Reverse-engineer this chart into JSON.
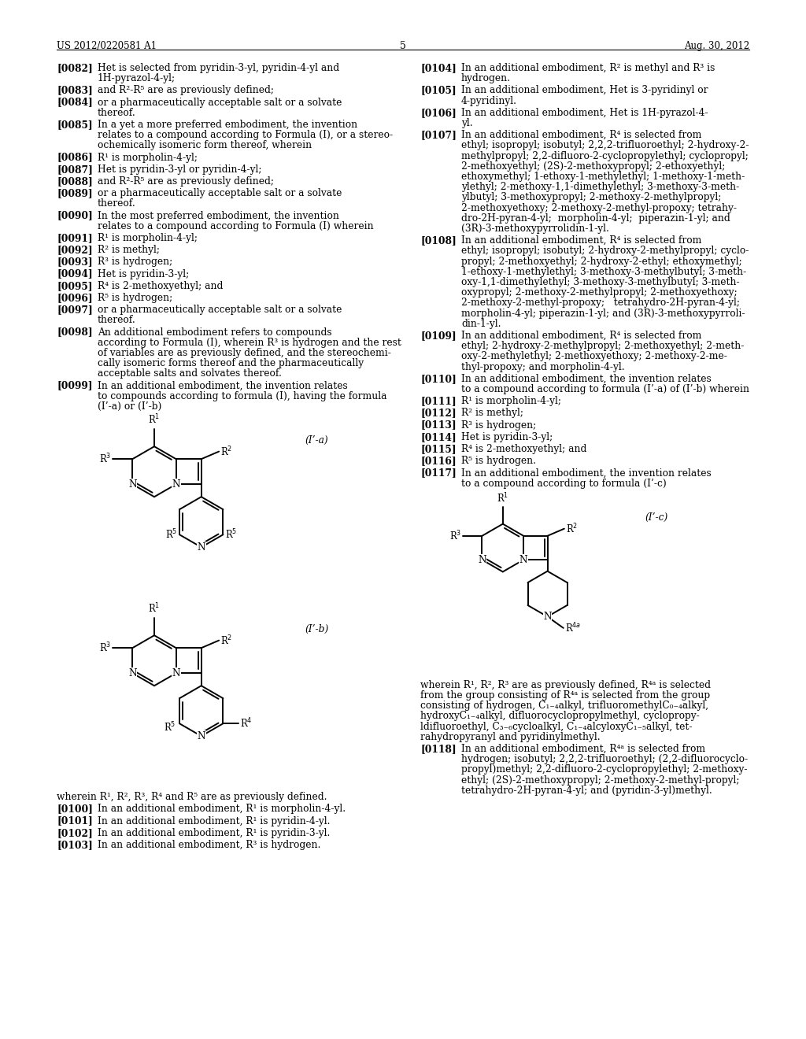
{
  "bg_color": "#ffffff",
  "header_left": "US 2012/0220581 A1",
  "header_center": "5",
  "header_right": "Aug. 30, 2012",
  "left_col_paragraphs": [
    {
      "num": "[0082]",
      "text": "Het is selected from pyridin-3-yl, pyridin-4-yl and\n1H-pyrazol-4-yl;"
    },
    {
      "num": "[0083]",
      "text": "and R²-R⁵ are as previously defined;"
    },
    {
      "num": "[0084]",
      "text": "or a pharmaceutically acceptable salt or a solvate\nthereof."
    },
    {
      "num": "[0085]",
      "text": "In a yet a more preferred embodiment, the invention\nrelates to a compound according to Formula (I), or a stereo-\nochemically isomeric form thereof, wherein"
    },
    {
      "num": "[0086]",
      "text": "R¹ is morpholin-4-yl;"
    },
    {
      "num": "[0087]",
      "text": "Het is pyridin-3-yl or pyridin-4-yl;"
    },
    {
      "num": "[0088]",
      "text": "and R²-R⁵ are as previously defined;"
    },
    {
      "num": "[0089]",
      "text": "or a pharmaceutically acceptable salt or a solvate\nthereof."
    },
    {
      "num": "[0090]",
      "text": "In the most preferred embodiment, the invention\nrelates to a compound according to Formula (I) wherein"
    },
    {
      "num": "[0091]",
      "text": "R¹ is morpholin-4-yl;"
    },
    {
      "num": "[0092]",
      "text": "R² is methyl;"
    },
    {
      "num": "[0093]",
      "text": "R³ is hydrogen;"
    },
    {
      "num": "[0094]",
      "text": "Het is pyridin-3-yl;"
    },
    {
      "num": "[0095]",
      "text": "R⁴ is 2-methoxyethyl; and"
    },
    {
      "num": "[0096]",
      "text": "R⁵ is hydrogen;"
    },
    {
      "num": "[0097]",
      "text": "or a pharmaceutically acceptable salt or a solvate\nthereof."
    },
    {
      "num": "[0098]",
      "text": "An additional embodiment refers to compounds\naccording to Formula (I), wherein R³ is hydrogen and the rest\nof variables are as previously defined, and the stereochemi-\ncally isomeric forms thereof and the pharmaceutically\nacceptable salts and solvates thereof."
    },
    {
      "num": "[0099]",
      "text": "In an additional embodiment, the invention relates\nto compounds according to formula (I), having the formula\n(I’-a) or (I’-b)"
    }
  ],
  "left_col_footer": [
    {
      "plain": "wherein R¹, R², R³, R⁴ and R⁵ are as previously defined."
    },
    {
      "num": "[0100]",
      "text": "In an additional embodiment, R¹ is morpholin-4-yl."
    },
    {
      "num": "[0101]",
      "text": "In an additional embodiment, R¹ is pyridin-4-yl."
    },
    {
      "num": "[0102]",
      "text": "In an additional embodiment, R¹ is pyridin-3-yl."
    },
    {
      "num": "[0103]",
      "text": "In an additional embodiment, R³ is hydrogen."
    }
  ],
  "right_col_paragraphs": [
    {
      "num": "[0104]",
      "text": "In an additional embodiment, R² is methyl and R³ is\nhydrogen."
    },
    {
      "num": "[0105]",
      "text": "In an additional embodiment, Het is 3-pyridinyl or\n4-pyridinyl."
    },
    {
      "num": "[0106]",
      "text": "In an additional embodiment, Het is 1H-pyrazol-4-\nyl."
    },
    {
      "num": "[0107]",
      "text": "In an additional embodiment, R⁴ is selected from\nethyl; isopropyl; isobutyl; 2,2,2-trifluoroethyl; 2-hydroxy-2-\nmethylpropyl; 2,2-difluoro-2-cyclopropylethyl; cyclopropyl;\n2-methoxyethyl; (2S)-2-methoxypropyl; 2-ethoxyethyl;\nethoxymethyl; 1-ethoxy-1-methylethyl; 1-methoxy-1-meth-\nylethyl; 2-methoxy-1,1-dimethylethyl; 3-methoxy-3-meth-\nylbutyl; 3-methoxypropyl; 2-methoxy-2-methylpropyl;\n2-methoxyethoxy; 2-methoxy-2-methyl-propoxy; tetrahy-\ndro-2H-pyran-4-yl;  morpholin-4-yl;  piperazin-1-yl; and\n(3R)-3-methoxypyrrolidin-1-yl."
    },
    {
      "num": "[0108]",
      "text": "In an additional embodiment, R⁴ is selected from\nethyl; isopropyl; isobutyl; 2-hydroxy-2-methylpropyl; cyclo-\npropyl; 2-methoxyethyl; 2-hydroxy-2-ethyl; ethoxymethyl;\n1-ethoxy-1-methylethyl; 3-methoxy-3-methylbutyl; 3-meth-\noxy-1,1-dimethylethyl; 3-methoxy-3-methylbutyl; 3-meth-\noxypropyl; 2-methoxy-2-methylpropyl; 2-methoxyethoxy;\n2-methoxy-2-methyl-propoxy;   tetrahydro-2H-pyran-4-yl;\nmorpholin-4-yl; piperazin-1-yl; and (3R)-3-methoxypyrroli-\ndin-1-yl."
    },
    {
      "num": "[0109]",
      "text": "In an additional embodiment, R⁴ is selected from\nethyl; 2-hydroxy-2-methylpropyl; 2-methoxyethyl; 2-meth-\noxy-2-methylethyl; 2-methoxyethoxy; 2-methoxy-2-me-\nthyl-propoxy; and morpholin-4-yl."
    },
    {
      "num": "[0110]",
      "text": "In an additional embodiment, the invention relates\nto a compound according to formula (I’-a) of (I’-b) wherein"
    },
    {
      "num": "[0111]",
      "text": "R¹ is morpholin-4-yl;"
    },
    {
      "num": "[0112]",
      "text": "R² is methyl;"
    },
    {
      "num": "[0113]",
      "text": "R³ is hydrogen;"
    },
    {
      "num": "[0114]",
      "text": "Het is pyridin-3-yl;"
    },
    {
      "num": "[0115]",
      "text": "R⁴ is 2-methoxyethyl; and"
    },
    {
      "num": "[0116]",
      "text": "R⁵ is hydrogen."
    },
    {
      "num": "[0117]",
      "text": "In an additional embodiment, the invention relates\nto a compound according to formula (I’-c)"
    }
  ],
  "right_col_footer": [
    {
      "plain": "wherein R¹, R², R³ are as previously defined, R⁴ᵃ is selected\nfrom the group consisting of R⁴ᵃ is selected from the group\nconsisting of hydrogen, C₁₋₄alkyl, trifluoromethylC₀₋₄alkyl,\nhydroxyC₁₋₄alkyl, difluorocyclopropylmethyl, cyclopropy-\nldifluoroethyl, C₃₋₆cycloalkyl, C₁₋₄alcyloxyC₁₋₅alkyl, tet-\nrahydropyranyl and pyridinylmethyl."
    },
    {
      "num": "[0118]",
      "text": "In an additional embodiment, R⁴ᵃ is selected from\nhydrogen; isobutyl; 2,2,2-trifluoroethyl; (2,2-difluorocyclo-\npropyl)methyl; 2,2-difluoro-2-cyclopropylethyl; 2-methoxy-\nethyl; (2S)-2-methoxypropyl; 2-methoxy-2-methyl-propyl;\ntetrahydro-2H-pyran-4-yl; and (pyridin-3-yl)methyl."
    }
  ]
}
